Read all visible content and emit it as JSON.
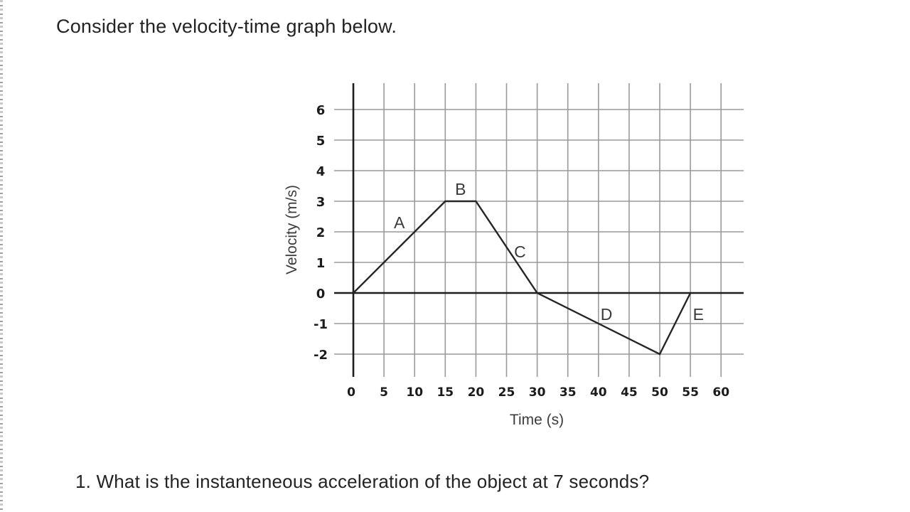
{
  "page": {
    "title": "Consider the velocity-time graph below.",
    "question": "1. What is the instanteneous acceleration of the object at 7 seconds?"
  },
  "chart_data": {
    "type": "line",
    "title": "",
    "xlabel": "Time (s)",
    "ylabel": "Velocity (m/s)",
    "xlim": [
      0,
      60
    ],
    "ylim": [
      -2,
      6
    ],
    "grid": true,
    "x_ticks": [
      0,
      5,
      10,
      15,
      20,
      25,
      30,
      35,
      40,
      45,
      50,
      55,
      60
    ],
    "y_ticks": [
      6,
      5,
      4,
      3,
      2,
      1,
      0,
      -1,
      -2
    ],
    "x_tick_labels": [
      "0",
      "5",
      "10",
      "15",
      "20",
      "25",
      "30",
      "35",
      "40",
      "45",
      "50",
      "55",
      "60"
    ],
    "y_tick_labels": [
      "6",
      "5",
      "4",
      "3",
      "2",
      "1",
      "0",
      "-1",
      "-2"
    ],
    "series": [
      {
        "name": "velocity",
        "x": [
          0,
          15,
          20,
          30,
          50,
          55
        ],
        "y": [
          0,
          3,
          3,
          0,
          -2,
          0
        ]
      }
    ],
    "segments": [
      {
        "label": "A",
        "from": [
          0,
          0
        ],
        "to": [
          15,
          3
        ],
        "label_pos": [
          7.5,
          2.3
        ]
      },
      {
        "label": "B",
        "from": [
          15,
          3
        ],
        "to": [
          20,
          3
        ],
        "label_pos": [
          17.5,
          3.4
        ]
      },
      {
        "label": "C",
        "from": [
          20,
          3
        ],
        "to": [
          30,
          0
        ],
        "label_pos": [
          27.2,
          1.35
        ]
      },
      {
        "label": "D",
        "from": [
          30,
          0
        ],
        "to": [
          50,
          -2
        ],
        "label_pos": [
          41.3,
          -0.7
        ]
      },
      {
        "label": "E",
        "from": [
          50,
          -2
        ],
        "to": [
          55,
          0
        ],
        "label_pos": [
          56.3,
          -0.7
        ]
      }
    ]
  }
}
